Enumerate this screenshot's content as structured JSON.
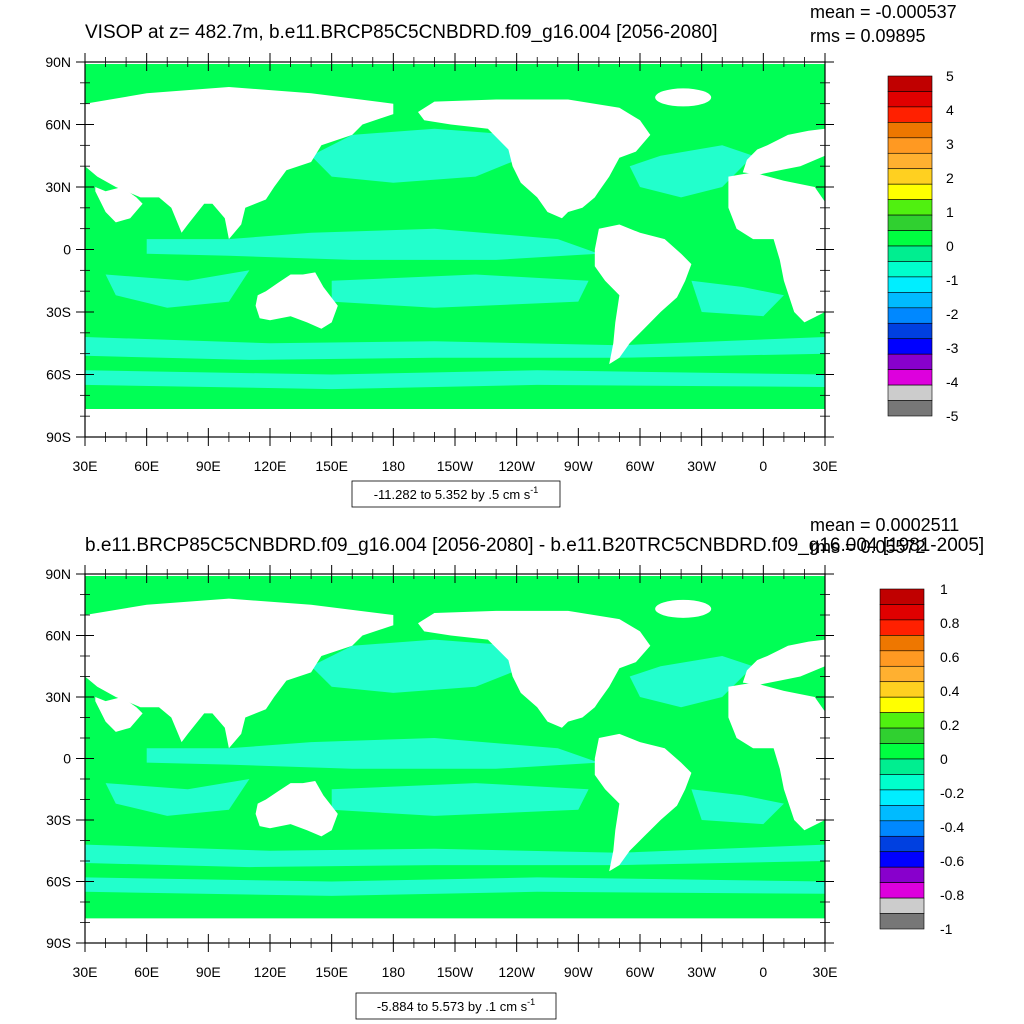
{
  "chart_data": [
    {
      "type": "heatmap",
      "title": "VISOP at z= 482.7m, b.e11.BRCP85C5CNBDRD.f09_g16.004 [2056-2080]",
      "stats": {
        "mean": "mean = -0.000537",
        "rms": "rms = 0.09895"
      },
      "y_ticks": [
        "90N",
        "60N",
        "30N",
        "0",
        "30S",
        "60S",
        "90S"
      ],
      "x_ticks": [
        "30E",
        "60E",
        "90E",
        "120E",
        "150E",
        "180",
        "150W",
        "120W",
        "90W",
        "60W",
        "30W",
        "0",
        "30E"
      ],
      "ylim": [
        -90,
        90
      ],
      "info_label": {
        "main": "-11.282 to 5.352 by .5 cm s",
        "sup": "-1"
      },
      "colorbar": {
        "labels": [
          "5",
          "4",
          "3",
          "2",
          "1",
          "0",
          "-1",
          "-2",
          "-3",
          "-4",
          "-5"
        ],
        "colors": [
          "#c00000",
          "#e00000",
          "#ff2000",
          "#ee7700",
          "#ff9922",
          "#ffb030",
          "#ffd020",
          "#ffff00",
          "#50f010",
          "#30d030",
          "#00ff40",
          "#00ee90",
          "#00ffcc",
          "#00eeff",
          "#00bbff",
          "#0088ff",
          "#0040e0",
          "#0000ff",
          "#8800cc",
          "#dd00dd",
          "#cccccc",
          "#777777"
        ]
      }
    },
    {
      "type": "heatmap",
      "title": "b.e11.BRCP85C5CNBDRD.f09_g16.004 [2056-2080] - b.e11.B20TRC5CNBDRD.f09_g16.004 [1981-2005]",
      "stats": {
        "mean": "mean = 0.0002511",
        "rms": "rms = 0.05572"
      },
      "y_ticks": [
        "90N",
        "60N",
        "30N",
        "0",
        "30S",
        "60S",
        "90S"
      ],
      "x_ticks": [
        "30E",
        "60E",
        "90E",
        "120E",
        "150E",
        "180",
        "150W",
        "120W",
        "90W",
        "60W",
        "30W",
        "0",
        "30E"
      ],
      "ylim": [
        -90,
        90
      ],
      "info_label": {
        "main": "-5.884 to 5.573 by .1 cm s",
        "sup": "-1"
      },
      "colorbar": {
        "labels": [
          "1",
          "0.8",
          "0.6",
          "0.4",
          "0.2",
          "0",
          "-0.2",
          "-0.4",
          "-0.6",
          "-0.8",
          "-1"
        ],
        "colors": [
          "#c00000",
          "#e00000",
          "#ff2000",
          "#ee7700",
          "#ff9922",
          "#ffb030",
          "#ffd020",
          "#ffff00",
          "#50f010",
          "#30d030",
          "#00ff40",
          "#00ee90",
          "#00ffcc",
          "#00eeff",
          "#00bbff",
          "#0088ff",
          "#0040e0",
          "#0000ff",
          "#8800cc",
          "#dd00dd",
          "#cccccc",
          "#777777"
        ]
      }
    }
  ],
  "field_colors": {
    "land": "#ffffff",
    "ocean_base": "#00ff55",
    "ocean_band": "#22ffcc"
  }
}
